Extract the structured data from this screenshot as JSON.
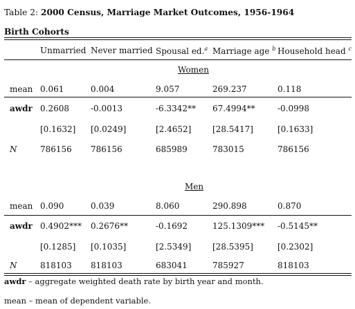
{
  "caption": {
    "prefix": "Table 2:",
    "title": "2000 Census, Marriage Market Outcomes, 1956-1964"
  },
  "section_title": "Birth Cohorts",
  "columns": [
    {
      "label": "Unmarried",
      "sup": ""
    },
    {
      "label": "Never married",
      "sup": ""
    },
    {
      "label": "Spousal ed.",
      "sup": "a"
    },
    {
      "label": "Marriage age",
      "sup": "b"
    },
    {
      "label": "Household head",
      "sup": "c"
    }
  ],
  "women": {
    "label": "Women",
    "mean": {
      "label": "mean",
      "values": [
        "0.061",
        "0.004",
        "9.057",
        "269.237",
        "0.118"
      ]
    },
    "awdr": {
      "label": "awdr",
      "values": [
        "0.2608",
        "-0.0013",
        "-6.3342**",
        "67.4994**",
        "-0.0998"
      ]
    },
    "se": {
      "values": [
        "[0.1632]",
        "[0.0249]",
        "[2.4652]",
        "[28.5417]",
        "[0.1633]"
      ]
    },
    "n": {
      "label": "N",
      "values": [
        "786156",
        "786156",
        "685989",
        "783015",
        "786156"
      ]
    }
  },
  "men": {
    "label": "Men",
    "mean": {
      "label": "mean",
      "values": [
        "0.090",
        "0.039",
        "8.060",
        "290.898",
        "0.870"
      ]
    },
    "awdr": {
      "label": "awdr",
      "values": [
        "0.4902***",
        "0.2676**",
        "-0.1692",
        "125.1309***",
        "-0.5145**"
      ]
    },
    "se": {
      "values": [
        "[0.1285]",
        "[0.1035]",
        "[2.5349]",
        "[28.5395]",
        "[0.2302]"
      ]
    },
    "n": {
      "label": "N",
      "values": [
        "818103",
        "818103",
        "683041",
        "785927",
        "818103"
      ]
    }
  },
  "notes": {
    "awdr_term": "awdr",
    "awdr_text": " – aggregate weighted death rate by birth year and month.",
    "mean_text": "mean – mean of dependent variable."
  }
}
